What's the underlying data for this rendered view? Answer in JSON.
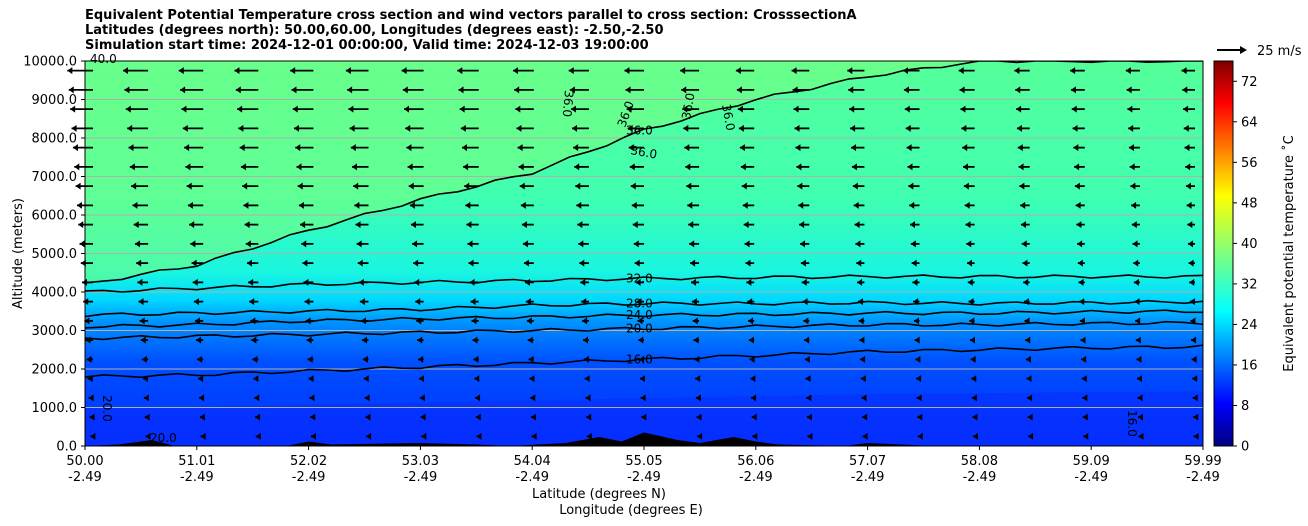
{
  "chart_data": {
    "type": "contour",
    "title_lines": [
      "Equivalent Potential Temperature cross section and wind vectors parallel to cross section: CrosssectionA",
      "Latitudes (degrees north): 50.00,60.00, Longitudes (degrees east): -2.50,-2.50",
      "Simulation start time: 2024-12-01 00:00:00, Valid time: 2024-12-03 19:00:00"
    ],
    "ylabel": "Altitude (meters)",
    "xlabel_lat": "Latitude (degrees N)",
    "xlabel_lon": "Longitude (degrees E)",
    "ylim": [
      0,
      10000
    ],
    "y_ticks": [
      "0.0",
      "1000.0",
      "2000.0",
      "3000.0",
      "4000.0",
      "5000.0",
      "6000.0",
      "7000.0",
      "8000.0",
      "9000.0",
      "10000.0"
    ],
    "x_ticks_lat": [
      "50.00",
      "51.01",
      "52.02",
      "53.03",
      "54.04",
      "55.05",
      "56.06",
      "57.07",
      "58.08",
      "59.09",
      "59.99"
    ],
    "x_ticks_lon": [
      "-2.49",
      "-2.49",
      "-2.49",
      "-2.49",
      "-2.49",
      "-2.49",
      "-2.49",
      "-2.49",
      "-2.49",
      "-2.49",
      "-2.49"
    ],
    "colorbar": {
      "label": "Equivalent potential temperature ˚C",
      "range": [
        0,
        76
      ],
      "ticks": [
        "0",
        "8",
        "16",
        "24",
        "32",
        "40",
        "48",
        "56",
        "64",
        "72"
      ],
      "colormap": "jet"
    },
    "quiver_key": "25 m/s",
    "grid": true,
    "contours": [
      {
        "level": "16.0",
        "label": "16.0",
        "heights": [
          1800,
          1850,
          1950,
          2050,
          2150,
          2250,
          2350,
          2450,
          2500,
          2550,
          2580
        ]
      },
      {
        "level": "20.0",
        "label": "20.0",
        "heights": [
          2800,
          2850,
          2900,
          2950,
          3000,
          3050,
          3100,
          3150,
          3150,
          3180,
          3200
        ]
      },
      {
        "level": "24.0",
        "label": "24.0",
        "heights": [
          3100,
          3150,
          3250,
          3300,
          3350,
          3400,
          3420,
          3450,
          3450,
          3480,
          3500
        ]
      },
      {
        "level": "28.0",
        "label": "28.0",
        "heights": [
          3400,
          3450,
          3500,
          3550,
          3650,
          3700,
          3700,
          3720,
          3700,
          3720,
          3750
        ]
      },
      {
        "level": "32.0",
        "label": "32.0",
        "heights": [
          4000,
          4100,
          4200,
          4250,
          4300,
          4350,
          4380,
          4400,
          4400,
          4400,
          4400
        ]
      },
      {
        "level": "36.0",
        "label": "36.0",
        "heights": [
          4200,
          4700,
          5600,
          6400,
          7100,
          8200,
          9000,
          9600,
          10000,
          10000,
          10000
        ]
      }
    ],
    "contour_labels_other": [
      "20.0",
      "40.0",
      "36.0",
      "36.0",
      "36.0",
      "36.0",
      "36.0",
      "16.0",
      "20.0"
    ],
    "wind": {
      "u_top_ms": -22,
      "u_bottom_ms": -2,
      "note_direction": "westward (toward 50.00)"
    }
  }
}
